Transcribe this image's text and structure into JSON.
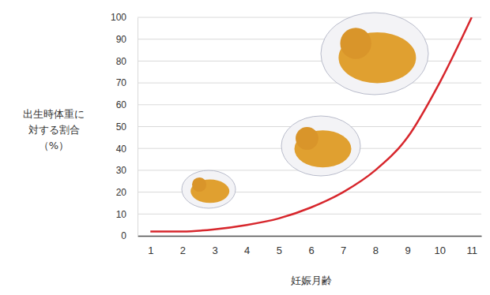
{
  "chart_data": {
    "type": "line",
    "x_label": "妊娠月齢",
    "y_label": [
      "出生時体重に",
      "対する割合",
      "（%）"
    ],
    "x": [
      1,
      2,
      3,
      4,
      5,
      6,
      7,
      8,
      9,
      10,
      11
    ],
    "values": [
      2,
      2,
      3,
      5,
      8,
      13,
      20,
      30,
      45,
      70,
      100
    ],
    "color": "#d7262c",
    "xlim": [
      0.6,
      11.3
    ],
    "ylim": [
      0,
      100
    ],
    "xticks": [
      1,
      2,
      3,
      4,
      5,
      6,
      7,
      8,
      9,
      10,
      11
    ],
    "yticks": [
      0,
      10,
      20,
      30,
      40,
      50,
      60,
      70,
      80,
      90,
      100
    ],
    "grid": true
  }
}
